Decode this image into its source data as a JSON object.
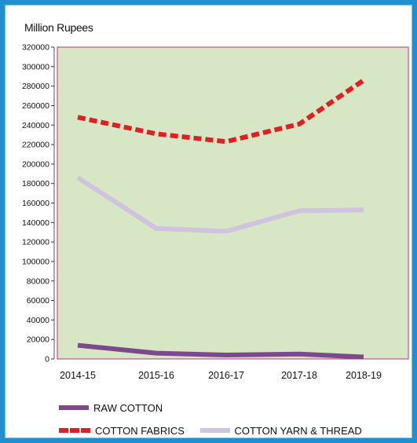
{
  "chart_data": {
    "type": "line",
    "ylabel": "Million Rupees",
    "categories": [
      "2014-15",
      "2015-16",
      "2016-17",
      "2017-18",
      "2018-19"
    ],
    "ylim": [
      0,
      320000
    ],
    "yticks": [
      "0",
      "20000",
      "40000",
      "60000",
      "80000",
      "100000",
      "120000",
      "140000",
      "160000",
      "180000",
      "200000",
      "220000",
      "240000",
      "260000",
      "280000",
      "300000",
      "320000"
    ],
    "grid": false,
    "plot_background": "#d7e6c4",
    "plot_border": "#c0307a",
    "legend_position": "bottom",
    "series": [
      {
        "name": "RAW COTTON",
        "color": "#7b4a8a",
        "style": "solid",
        "values": [
          14000,
          6000,
          4000,
          5000,
          2000
        ]
      },
      {
        "name": "COTTON FABRICS",
        "color": "#e02020",
        "style": "dashed",
        "values": [
          248000,
          231000,
          223000,
          241000,
          286000
        ]
      },
      {
        "name": "COTTON YARN & THREAD",
        "color": "#cfc3df",
        "style": "solid",
        "values": [
          186000,
          134000,
          131000,
          152000,
          153000
        ]
      }
    ]
  }
}
